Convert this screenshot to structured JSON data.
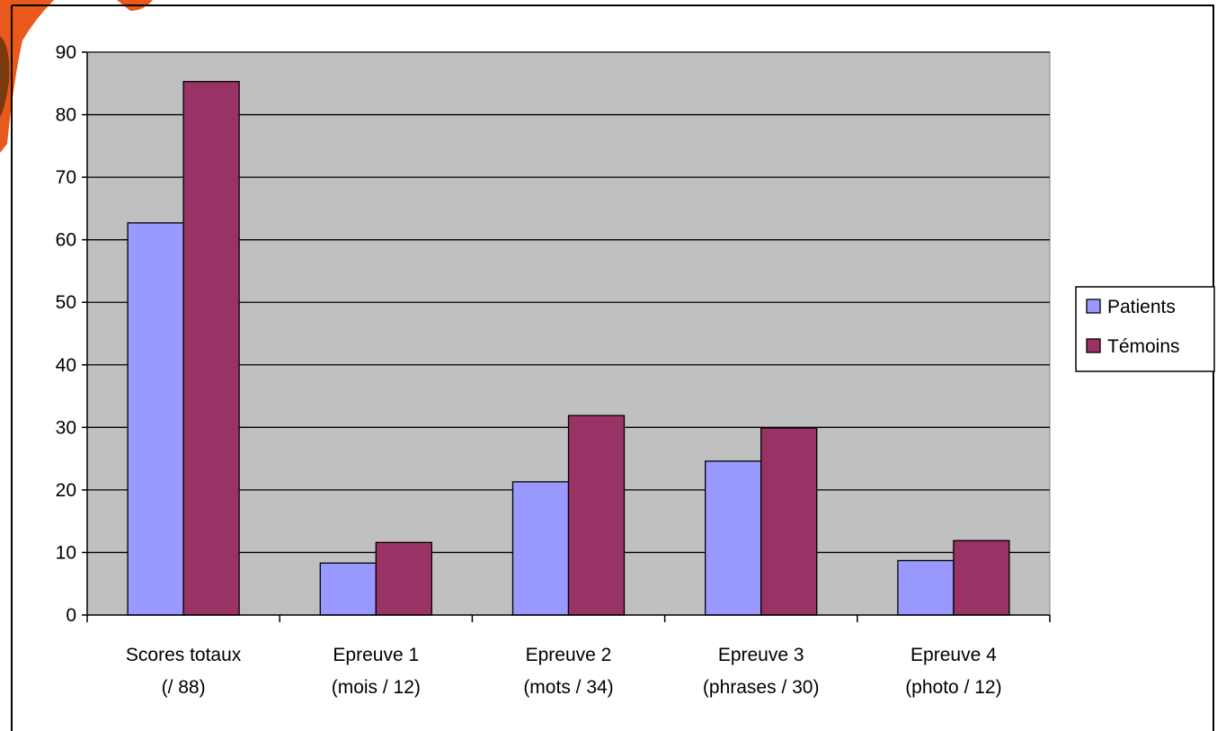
{
  "chart_data": {
    "type": "bar",
    "title": "",
    "xlabel": "",
    "ylabel": "",
    "categories": [
      [
        "Scores totaux",
        "(/ 88)"
      ],
      [
        "Epreuve 1",
        "(mois / 12)"
      ],
      [
        "Epreuve 2",
        "(mots / 34)"
      ],
      [
        "Epreuve 3",
        "(phrases / 30)"
      ],
      [
        "Epreuve 4",
        "(photo / 12)"
      ]
    ],
    "series": [
      {
        "name": "Patients",
        "color": "#9999ff",
        "values": [
          62.7,
          8.3,
          21.3,
          24.6,
          8.7
        ]
      },
      {
        "name": "Témoins",
        "color": "#993366",
        "values": [
          85.3,
          11.6,
          31.9,
          29.9,
          11.9
        ]
      }
    ],
    "ylim": [
      0,
      90
    ],
    "yticks": [
      0,
      10,
      20,
      30,
      40,
      50,
      60,
      70,
      80,
      90
    ],
    "grid": true,
    "legend_position": "right",
    "plot_background": "#c0c0c0"
  }
}
